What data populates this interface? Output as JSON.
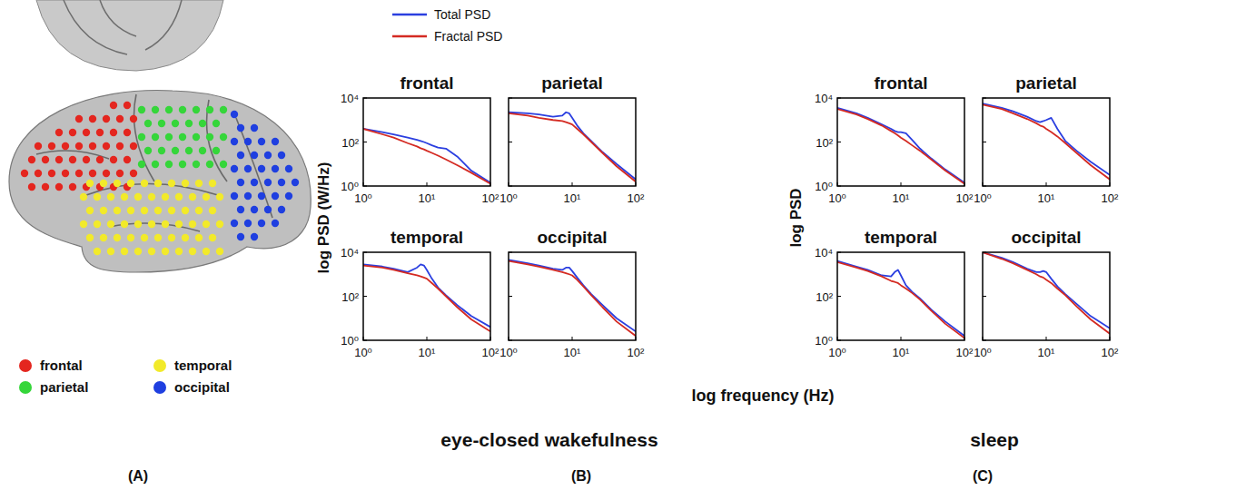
{
  "figure": {
    "xlabel": "log frequency (Hz)",
    "ylabels": [
      "log PSD (W/Hz)",
      "log PSD"
    ],
    "conditions": [
      "eye-closed wakefulness",
      "sleep"
    ],
    "panel_labels": [
      "(A)",
      "(B)",
      "(C)"
    ]
  },
  "panel_a": {
    "regions": [
      {
        "name": "frontal",
        "color": "#e4261f"
      },
      {
        "name": "parietal",
        "color": "#35d63a"
      },
      {
        "name": "temporal",
        "color": "#f2ea2a"
      },
      {
        "name": "occipital",
        "color": "#1f3fe0"
      }
    ]
  },
  "chart_data": [
    {
      "type": "line",
      "title": "frontal",
      "log": true,
      "legend": "top",
      "x": [
        1,
        2,
        3,
        5,
        7,
        8,
        9,
        10,
        12,
        15,
        20,
        30,
        50,
        100
      ],
      "xlim": [
        1,
        100
      ],
      "ylim": [
        1,
        10000
      ],
      "xticks": [
        {
          "value": 1,
          "label": "10⁰"
        },
        {
          "value": 10,
          "label": "10¹"
        },
        {
          "value": 100,
          "label": "10²"
        }
      ],
      "yticks": [
        {
          "value": 1,
          "label": "10⁰"
        },
        {
          "value": 100,
          "label": "10²"
        },
        {
          "value": 10000,
          "label": "10⁴"
        }
      ],
      "series": [
        {
          "name": "Total PSD",
          "color": "#2b3fe0",
          "values": [
            398,
            282,
            224,
            158,
            126,
            112,
            100,
            89,
            71,
            56,
            50,
            22,
            5.0,
            1.41
          ]
        },
        {
          "name": "Fractal PSD",
          "color": "#d42a22",
          "values": [
            398,
            224,
            158,
            89,
            63,
            52,
            46,
            40,
            32,
            24,
            16,
            8.9,
            4.0,
            1.26
          ]
        }
      ]
    },
    {
      "type": "line",
      "title": "parietal",
      "log": true,
      "tick_labels": "x",
      "x": [
        1,
        2,
        3,
        5,
        7,
        8,
        9,
        10,
        12,
        15,
        20,
        30,
        50,
        100
      ],
      "xlim": [
        1,
        100
      ],
      "ylim": [
        1,
        10000
      ],
      "xticks": [
        {
          "value": 1,
          "label": "10⁰"
        },
        {
          "value": 10,
          "label": "10¹"
        },
        {
          "value": 100,
          "label": "10²"
        }
      ],
      "yticks": [
        {
          "value": 1,
          "label": "10⁰"
        },
        {
          "value": 100,
          "label": "10²"
        },
        {
          "value": 10000,
          "label": "10⁴"
        }
      ],
      "series": [
        {
          "name": "Total PSD",
          "color": "#2b3fe0",
          "values": [
            2240,
            2000,
            1780,
            1410,
            1580,
            2240,
            2000,
            1260,
            562,
            251,
            112,
            35,
            10,
            2.0
          ]
        },
        {
          "name": "Fractal PSD",
          "color": "#d42a22",
          "values": [
            2000,
            1580,
            1260,
            1000,
            891,
            794,
            708,
            631,
            398,
            224,
            100,
            32,
            7.9,
            1.58
          ]
        }
      ]
    },
    {
      "type": "line",
      "title": "temporal",
      "log": true,
      "x": [
        1,
        2,
        3,
        5,
        7,
        8,
        9,
        10,
        12,
        15,
        20,
        30,
        50,
        100
      ],
      "xlim": [
        1,
        100
      ],
      "ylim": [
        1,
        10000
      ],
      "xticks": [
        {
          "value": 1,
          "label": "10⁰"
        },
        {
          "value": 10,
          "label": "10¹"
        },
        {
          "value": 100,
          "label": "10²"
        }
      ],
      "yticks": [
        {
          "value": 1,
          "label": "10⁰"
        },
        {
          "value": 100,
          "label": "10²"
        },
        {
          "value": 10000,
          "label": "10⁴"
        }
      ],
      "series": [
        {
          "name": "Total PSD",
          "color": "#2b3fe0",
          "values": [
            2820,
            2240,
            1780,
            1260,
            2000,
            2820,
            2510,
            1580,
            631,
            251,
            112,
            40,
            12.6,
            4.0
          ]
        },
        {
          "name": "Fractal PSD",
          "color": "#d42a22",
          "values": [
            2510,
            2000,
            1580,
            1120,
            891,
            794,
            708,
            631,
            398,
            224,
            100,
            32,
            8.9,
            2.5
          ]
        }
      ]
    },
    {
      "type": "line",
      "title": "occipital",
      "log": true,
      "tick_labels": "x",
      "x": [
        1,
        2,
        3,
        5,
        7,
        8,
        9,
        10,
        12,
        15,
        20,
        30,
        50,
        100
      ],
      "xlim": [
        1,
        100
      ],
      "ylim": [
        1,
        10000
      ],
      "xticks": [
        {
          "value": 1,
          "label": "10⁰"
        },
        {
          "value": 10,
          "label": "10¹"
        },
        {
          "value": 100,
          "label": "10²"
        }
      ],
      "yticks": [
        {
          "value": 1,
          "label": "10⁰"
        },
        {
          "value": 100,
          "label": "10²"
        },
        {
          "value": 10000,
          "label": "10⁴"
        }
      ],
      "series": [
        {
          "name": "Total PSD",
          "color": "#2b3fe0",
          "values": [
            4470,
            3160,
            2510,
            1780,
            1580,
            2000,
            2000,
            1410,
            708,
            316,
            126,
            40,
            10,
            2.5
          ]
        },
        {
          "name": "Fractal PSD",
          "color": "#d42a22",
          "values": [
            3980,
            2820,
            2240,
            1580,
            1260,
            1120,
            1000,
            891,
            562,
            282,
            112,
            32,
            7.1,
            1.58
          ]
        }
      ]
    },
    {
      "type": "line",
      "title": "frontal",
      "log": true,
      "x": [
        1,
        2,
        3,
        5,
        7,
        8,
        9,
        10,
        12,
        15,
        20,
        30,
        50,
        100
      ],
      "xlim": [
        1,
        100
      ],
      "ylim": [
        1,
        10000
      ],
      "xticks": [
        {
          "value": 1,
          "label": "10⁰"
        },
        {
          "value": 10,
          "label": "10¹"
        },
        {
          "value": 100,
          "label": "10²"
        }
      ],
      "yticks": [
        {
          "value": 1,
          "label": "10⁰"
        },
        {
          "value": 100,
          "label": "10²"
        },
        {
          "value": 10000,
          "label": "10⁴"
        }
      ],
      "series": [
        {
          "name": "Total PSD",
          "color": "#2b3fe0",
          "values": [
            3550,
            2000,
            1260,
            631,
            398,
            316,
            282,
            282,
            251,
            126,
            50,
            18,
            5.6,
            1.41
          ]
        },
        {
          "name": "Fractal PSD",
          "color": "#d42a22",
          "values": [
            3160,
            1780,
            1120,
            562,
            316,
            251,
            200,
            158,
            112,
            71,
            40,
            16,
            5.0,
            1.26
          ]
        }
      ]
    },
    {
      "type": "line",
      "title": "parietal",
      "log": true,
      "tick_labels": "x",
      "x": [
        1,
        2,
        3,
        5,
        7,
        8,
        9,
        10,
        12,
        15,
        20,
        30,
        50,
        100
      ],
      "xlim": [
        1,
        100
      ],
      "ylim": [
        1,
        10000
      ],
      "xticks": [
        {
          "value": 1,
          "label": "10⁰"
        },
        {
          "value": 10,
          "label": "10¹"
        },
        {
          "value": 100,
          "label": "10²"
        }
      ],
      "yticks": [
        {
          "value": 1,
          "label": "10⁰"
        },
        {
          "value": 100,
          "label": "10²"
        },
        {
          "value": 10000,
          "label": "10⁴"
        }
      ],
      "series": [
        {
          "name": "Total PSD",
          "color": "#2b3fe0",
          "values": [
            5620,
            3550,
            2510,
            1410,
            891,
            794,
            891,
            1000,
            1260,
            398,
            112,
            40,
            12.6,
            3.2
          ]
        },
        {
          "name": "Fractal PSD",
          "color": "#d42a22",
          "values": [
            5010,
            3160,
            2000,
            1120,
            708,
            562,
            501,
            398,
            282,
            178,
            89,
            32,
            8.9,
            2.0
          ]
        }
      ]
    },
    {
      "type": "line",
      "title": "temporal",
      "log": true,
      "x": [
        1,
        2,
        3,
        5,
        7,
        8,
        9,
        10,
        12,
        15,
        20,
        30,
        50,
        100
      ],
      "xlim": [
        1,
        100
      ],
      "ylim": [
        1,
        10000
      ],
      "xticks": [
        {
          "value": 1,
          "label": "10⁰"
        },
        {
          "value": 10,
          "label": "10¹"
        },
        {
          "value": 100,
          "label": "10²"
        }
      ],
      "yticks": [
        {
          "value": 1,
          "label": "10⁰"
        },
        {
          "value": 100,
          "label": "10²"
        },
        {
          "value": 10000,
          "label": "10⁴"
        }
      ],
      "series": [
        {
          "name": "Total PSD",
          "color": "#2b3fe0",
          "values": [
            3980,
            2240,
            1580,
            891,
            794,
            1260,
            1580,
            891,
            316,
            158,
            79,
            25,
            7.1,
            1.58
          ]
        },
        {
          "name": "Fractal PSD",
          "color": "#d42a22",
          "values": [
            3550,
            2000,
            1410,
            794,
            501,
            447,
            398,
            316,
            224,
            141,
            71,
            22,
            5.6,
            1.26
          ]
        }
      ]
    },
    {
      "type": "line",
      "title": "occipital",
      "log": true,
      "tick_labels": "x",
      "x": [
        1,
        2,
        3,
        5,
        7,
        8,
        9,
        10,
        12,
        15,
        20,
        30,
        50,
        100
      ],
      "xlim": [
        1,
        100
      ],
      "ylim": [
        1,
        10000
      ],
      "xticks": [
        {
          "value": 1,
          "label": "10⁰"
        },
        {
          "value": 10,
          "label": "10¹"
        },
        {
          "value": 100,
          "label": "10²"
        }
      ],
      "yticks": [
        {
          "value": 1,
          "label": "10⁰"
        },
        {
          "value": 100,
          "label": "10²"
        },
        {
          "value": 10000,
          "label": "10⁴"
        }
      ],
      "series": [
        {
          "name": "Total PSD",
          "color": "#2b3fe0",
          "values": [
            10000,
            5620,
            3550,
            1780,
            1260,
            1260,
            1410,
            1260,
            631,
            282,
            126,
            45,
            12.6,
            3.5
          ]
        },
        {
          "name": "Fractal PSD",
          "color": "#d42a22",
          "values": [
            10000,
            5010,
            3160,
            1580,
            1000,
            794,
            708,
            562,
            398,
            224,
            112,
            35,
            8.9,
            2.0
          ]
        }
      ]
    }
  ]
}
